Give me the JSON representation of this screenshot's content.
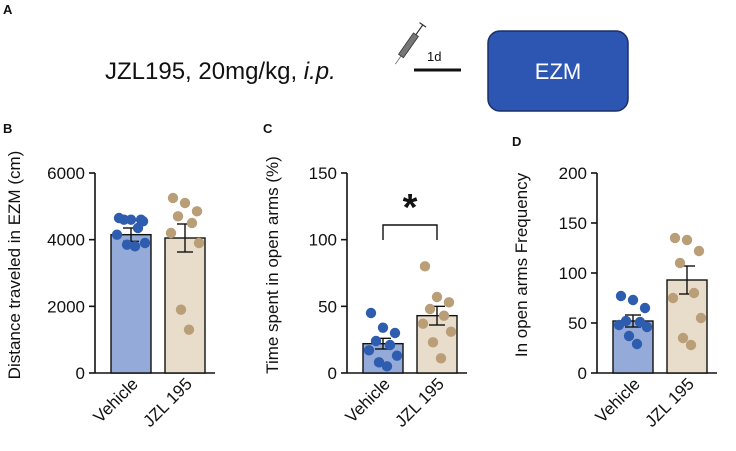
{
  "panels": {
    "A": "A",
    "B": "B",
    "C": "C",
    "D": "D"
  },
  "protocol": {
    "drug": "JZL195, 20mg/kg, ",
    "route": "i.p.",
    "interval": "1d",
    "test": "EZM",
    "box_color": "#2d56b3",
    "syringe_icon": "syringe-icon"
  },
  "significance": {
    "symbol": "*"
  },
  "colors": {
    "vehicle_bar": "#94aad8",
    "vehicle_dot": "#2e5db0",
    "jzl_bar": "#e8dccb",
    "jzl_dot": "#b99e78"
  },
  "chart_data": [
    {
      "panel": "B",
      "type": "bar",
      "categories": [
        "Vehicle",
        "JZL 195"
      ],
      "values": [
        4150,
        4050
      ],
      "sem": [
        200,
        420
      ],
      "points": [
        [
          4650,
          4600,
          4550,
          4600,
          4350,
          4150,
          3900,
          3850,
          3800,
          4600
        ],
        [
          5250,
          5100,
          4850,
          4700,
          4500,
          4200,
          3900,
          1900,
          1300
        ]
      ],
      "ylabel": "Distance traveled in EZM (cm)",
      "xlabel": "",
      "title": "",
      "ylim": [
        0,
        6000
      ],
      "yticks": [
        "0",
        "2000",
        "4000",
        "6000"
      ],
      "tick_values": [
        0,
        2000,
        4000,
        6000
      ]
    },
    {
      "panel": "C",
      "type": "bar",
      "categories": [
        "Vehicle",
        "JZL 195"
      ],
      "values": [
        22,
        43
      ],
      "sem": [
        4,
        7
      ],
      "points": [
        [
          45,
          34,
          30,
          24,
          21,
          17,
          13,
          8,
          5
        ],
        [
          80,
          57,
          53,
          48,
          43,
          37,
          31,
          23,
          11
        ]
      ],
      "ylabel": "Time spent in open arms (%)",
      "xlabel": "",
      "title": "",
      "ylim": [
        0,
        150
      ],
      "yticks": [
        "0",
        "50",
        "100",
        "150"
      ],
      "tick_values": [
        0,
        50,
        100,
        150
      ]
    },
    {
      "panel": "D",
      "type": "bar",
      "categories": [
        "Vehicle",
        "JZL 195"
      ],
      "values": [
        52,
        93
      ],
      "sem": [
        6,
        14
      ],
      "points": [
        [
          77,
          73,
          65,
          52,
          51,
          48,
          46,
          37,
          29
        ],
        [
          135,
          133,
          122,
          110,
          80,
          75,
          55,
          35,
          28
        ]
      ],
      "ylabel": "In open arms Frequency",
      "xlabel": "",
      "title": "",
      "ylim": [
        0,
        200
      ],
      "yticks": [
        "0",
        "50",
        "100",
        "150",
        "200"
      ],
      "tick_values": [
        0,
        50,
        100,
        150,
        200
      ]
    }
  ]
}
